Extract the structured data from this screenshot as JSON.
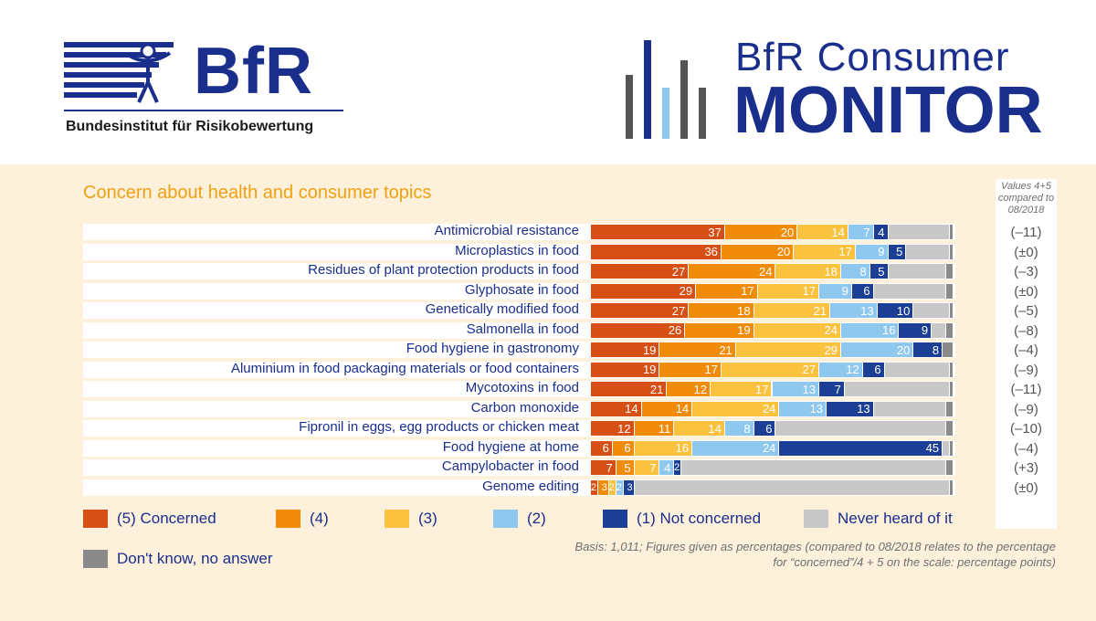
{
  "header": {
    "logo_wordmark": "BfR",
    "logo_fullname": "Bundesinstitut für Risikobewertung",
    "monitor_line1": "BfR Consumer",
    "monitor_line2": "MONITOR",
    "brand_color": "#1a2e8c"
  },
  "chart_data": {
    "type": "bar",
    "orientation": "horizontal-stacked-100",
    "title": "Concern about health and consumer topics",
    "comparison_header": "Values 4+5 compared to 08/2018",
    "categories": [
      "Antimicrobial resistance",
      "Microplastics in food",
      "Residues of plant protection products in food",
      "Glyphosate in food",
      "Genetically modified food",
      "Salmonella in food",
      "Food hygiene in gastronomy",
      "Aluminium in food packaging materials or food containers",
      "Mycotoxins in food",
      "Carbon monoxide",
      "Fipronil in eggs, egg products or chicken meat",
      "Food hygiene at home",
      "Campylobacter in food",
      "Genome editing"
    ],
    "series": [
      {
        "name": "(5) Concerned",
        "color": "#d64f15",
        "values": [
          37,
          36,
          27,
          29,
          27,
          26,
          19,
          19,
          21,
          14,
          12,
          6,
          7,
          2
        ]
      },
      {
        "name": "(4)",
        "color": "#f08c0a",
        "values": [
          20,
          20,
          24,
          17,
          18,
          19,
          21,
          17,
          12,
          14,
          11,
          6,
          5,
          3
        ]
      },
      {
        "name": "(3)",
        "color": "#fbc240",
        "values": [
          14,
          17,
          18,
          17,
          21,
          24,
          29,
          27,
          17,
          24,
          14,
          16,
          7,
          2
        ]
      },
      {
        "name": "(2)",
        "color": "#8fc8ee",
        "values": [
          7,
          9,
          8,
          9,
          13,
          16,
          20,
          12,
          13,
          13,
          8,
          24,
          4,
          2
        ]
      },
      {
        "name": "(1) Not concerned",
        "color": "#1c3f95",
        "values": [
          4,
          5,
          5,
          6,
          10,
          9,
          8,
          6,
          7,
          13,
          6,
          45,
          2,
          3
        ]
      },
      {
        "name": "Never heard of it",
        "color": "#c8c8c8",
        "values": [
          17,
          12,
          16,
          20,
          10,
          4,
          0,
          18,
          29,
          20,
          47,
          2,
          73,
          87
        ]
      },
      {
        "name": "Don't know, no answer",
        "color": "#8a8a8a",
        "values": [
          1,
          1,
          2,
          2,
          1,
          2,
          3,
          1,
          1,
          2,
          2,
          1,
          2,
          1
        ]
      }
    ],
    "value_labels": [
      [
        "37",
        "20",
        "14",
        "7",
        "4"
      ],
      [
        "36",
        "20",
        "17",
        "9",
        "5"
      ],
      [
        "27",
        "24",
        "18",
        "8",
        "5"
      ],
      [
        "29",
        "17",
        "17",
        "9",
        "6"
      ],
      [
        "27",
        "18",
        "21",
        "13",
        "10"
      ],
      [
        "26",
        "19",
        "24",
        "16",
        "9"
      ],
      [
        "19",
        "21",
        "29",
        "20",
        "8"
      ],
      [
        "19",
        "17",
        "27",
        "12",
        "6"
      ],
      [
        "21",
        "12",
        "17",
        "13",
        "7"
      ],
      [
        "14",
        "14",
        "24",
        "13",
        "13"
      ],
      [
        "12",
        "11",
        "14",
        "8",
        "6"
      ],
      [
        "6",
        "6",
        "16",
        "24",
        "45"
      ],
      [
        "7",
        "5",
        "7",
        "4",
        "2"
      ],
      [
        "2",
        "3",
        "2",
        "2",
        "3"
      ]
    ],
    "comparison": [
      "(–11)",
      "(±0)",
      "(–3)",
      "(±0)",
      "(–5)",
      "(–8)",
      "(–4)",
      "(–9)",
      "(–11)",
      "(–9)",
      "(–10)",
      "(–4)",
      "(+3)",
      "(±0)"
    ],
    "xlim": [
      0,
      100
    ]
  },
  "legend": [
    {
      "label": "(5) Concerned",
      "color": "#d64f15"
    },
    {
      "label": "(4)",
      "color": "#f08c0a"
    },
    {
      "label": "(3)",
      "color": "#fbc240"
    },
    {
      "label": "(2)",
      "color": "#8fc8ee"
    },
    {
      "label": "(1) Not concerned",
      "color": "#1c3f95"
    },
    {
      "label": "Never heard of it",
      "color": "#c8c8c8"
    },
    {
      "label": "Don't know, no answer",
      "color": "#8a8a8a"
    }
  ],
  "basis_note": "Basis: 1,011; Figures given as percentages (compared to 08/2018 relates to the percentage for “concerned”/4 + 5 on the scale: percentage points)"
}
